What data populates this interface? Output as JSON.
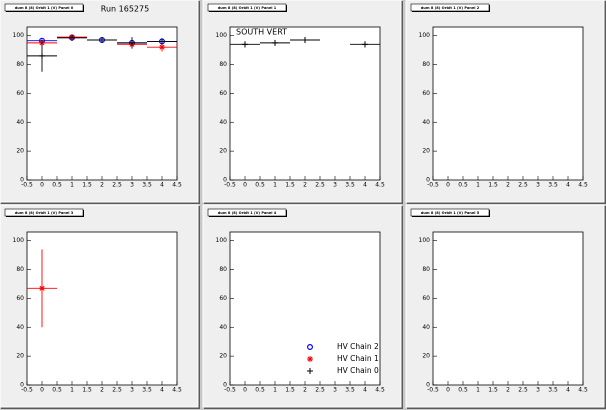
{
  "chart_data": [
    {
      "type": "scatter",
      "title": "dum 8 (8) Orbit 1 (V) Panel 0",
      "annotation": "Run 165275",
      "xlim": [
        -0.5,
        4.5
      ],
      "ylim": [
        0,
        106
      ],
      "xticks": [
        -0.5,
        0,
        0.5,
        1,
        1.5,
        2,
        2.5,
        3,
        3.5,
        4,
        4.5
      ],
      "yticks": [
        0,
        20,
        40,
        60,
        80,
        100
      ],
      "series": [
        {
          "color": "#0000ff",
          "marker": "circle",
          "xerr": 0.5,
          "x": [
            0,
            1,
            2,
            3,
            4
          ],
          "values": [
            96.5,
            98.6,
            97,
            95,
            96
          ],
          "errors": [
            1,
            1,
            1,
            1,
            1
          ]
        },
        {
          "color": "#ff0000",
          "marker": "star",
          "xerr": 0.5,
          "x": [
            0,
            1,
            3,
            4
          ],
          "values": [
            95,
            99,
            94,
            92
          ],
          "errors": [
            1,
            1,
            1,
            3
          ]
        },
        {
          "color": "#000000",
          "marker": "cross",
          "xerr": 0.5,
          "x": [
            0,
            1,
            2,
            3,
            4
          ],
          "values": [
            86,
            98.5,
            97,
            95,
            96
          ],
          "errors": [
            11,
            1,
            1,
            4,
            1
          ]
        }
      ]
    },
    {
      "type": "scatter",
      "title": "dum 8 (8) Orbit 1 (V) Panel 1",
      "annotation": "SOUTH VERT",
      "xlim": [
        -0.5,
        4.5
      ],
      "ylim": [
        0,
        106
      ],
      "xticks": [
        -0.5,
        0,
        0.5,
        1,
        1.5,
        2,
        2.5,
        3,
        3.5,
        4,
        4.5
      ],
      "yticks": [
        0,
        20,
        40,
        60,
        80,
        100
      ],
      "series": [
        {
          "color": "#000000",
          "marker": "cross",
          "xerr": 0.5,
          "x": [
            0,
            1,
            2,
            4
          ],
          "values": [
            94,
            95,
            97,
            94
          ],
          "errors": [
            2,
            2,
            1,
            2
          ]
        }
      ]
    },
    {
      "type": "scatter",
      "title": "dum 8 (8) Orbit 1 (V) Panel 2",
      "xlim": [
        -0.5,
        4.5
      ],
      "ylim": [
        0,
        106
      ],
      "xticks": [
        -0.5,
        0,
        0.5,
        1,
        1.5,
        2,
        2.5,
        3,
        3.5,
        4,
        4.5
      ],
      "yticks": [
        0,
        20,
        40,
        60,
        80,
        100
      ],
      "series": []
    },
    {
      "type": "scatter",
      "title": "dum 8 (8) Orbit 1 (V) Panel 3",
      "xlim": [
        -0.5,
        4.5
      ],
      "ylim": [
        0,
        106
      ],
      "xticks": [
        -0.5,
        0,
        0.5,
        1,
        1.5,
        2,
        2.5,
        3,
        3.5,
        4,
        4.5
      ],
      "yticks": [
        0,
        20,
        40,
        60,
        80,
        100
      ],
      "series": [
        {
          "color": "#ff0000",
          "marker": "star",
          "xerr": 0.5,
          "x": [
            0
          ],
          "values": [
            67
          ],
          "errors": [
            27
          ]
        }
      ]
    },
    {
      "type": "scatter",
      "title": "dum 8 (8) Orbit 1 (V) Panel 4",
      "legend": "bottom-right",
      "xlim": [
        -0.5,
        4.5
      ],
      "ylim": [
        0,
        106
      ],
      "xticks": [
        -0.5,
        0,
        0.5,
        1,
        1.5,
        2,
        2.5,
        3,
        3.5,
        4,
        4.5
      ],
      "yticks": [
        0,
        20,
        40,
        60,
        80,
        100
      ],
      "series": [
        {
          "name": "HV Chain 2",
          "color": "#0000ff",
          "marker": "circle",
          "x": [],
          "values": []
        },
        {
          "name": "HV Chain 1",
          "color": "#ff0000",
          "marker": "star",
          "x": [],
          "values": []
        },
        {
          "name": "HV Chain 0",
          "color": "#000000",
          "marker": "cross",
          "x": [],
          "values": []
        }
      ]
    },
    {
      "type": "scatter",
      "title": "dum 8 (8) Orbit 1 (V) Panel 5",
      "xlim": [
        -0.5,
        4.5
      ],
      "ylim": [
        0,
        106
      ],
      "xticks": [
        -0.5,
        0,
        0.5,
        1,
        1.5,
        2,
        2.5,
        3,
        3.5,
        4,
        4.5
      ],
      "yticks": [
        0,
        20,
        40,
        60,
        80,
        100
      ],
      "series": []
    }
  ]
}
